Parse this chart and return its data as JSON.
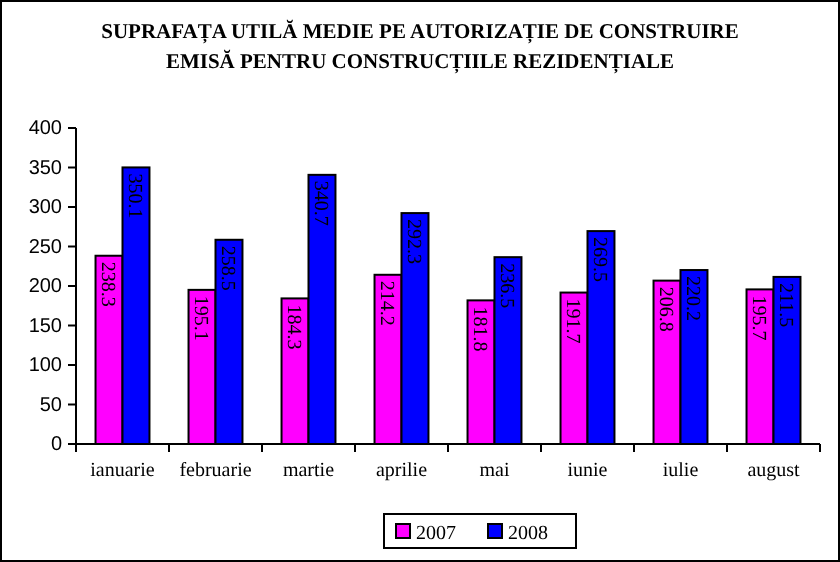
{
  "chart_data": {
    "type": "bar",
    "title": "SUPRAFAȚA UTILĂ MEDIE PE AUTORIZAȚIE DE CONSTRUIRE\nEMISĂ PENTRU CONSTRUCȚIILE REZIDENȚIALE",
    "categories": [
      "ianuarie",
      "februarie",
      "martie",
      "aprilie",
      "mai",
      "iunie",
      "iulie",
      "august"
    ],
    "series": [
      {
        "name": "2007",
        "color": "#ff00ff",
        "values": [
          238.3,
          195.1,
          184.3,
          214.2,
          181.8,
          191.7,
          206.8,
          195.7
        ]
      },
      {
        "name": "2008",
        "color": "#0000ff",
        "values": [
          350.1,
          258.5,
          340.7,
          292.3,
          236.5,
          269.5,
          220.2,
          211.5
        ]
      }
    ],
    "ylim": [
      0,
      400
    ],
    "yticks": [
      0,
      50,
      100,
      150,
      200,
      250,
      300,
      350,
      400
    ],
    "grid": false,
    "legend": "bottom",
    "data_labels": true
  }
}
